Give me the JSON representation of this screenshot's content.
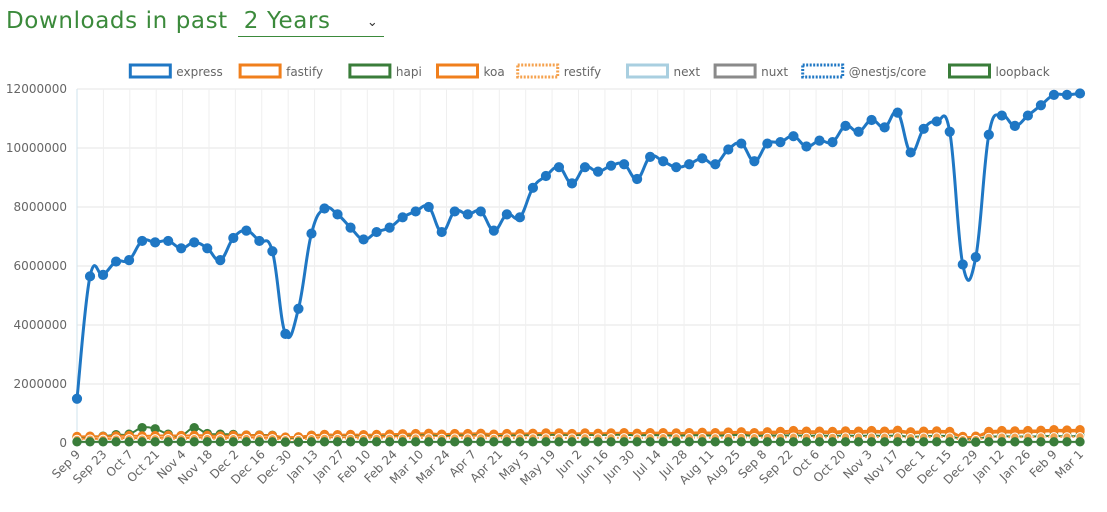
{
  "header": {
    "title": "Downloads in past",
    "range_value": "2 Years",
    "chevron_icon": "chevron-down-icon"
  },
  "chart_data": {
    "type": "line",
    "ylim": [
      0,
      12000000
    ],
    "y_ticks": [
      "0",
      "2000000",
      "4000000",
      "6000000",
      "8000000",
      "10000000",
      "12000000"
    ],
    "x_tick_labels": [
      "Sep 9",
      "Sep 23",
      "Oct 7",
      "Oct 21",
      "Nov 4",
      "Nov 18",
      "Dec 2",
      "Dec 16",
      "Dec 30",
      "Jan 13",
      "Jan 27",
      "Feb 10",
      "Feb 24",
      "Mar 10",
      "Mar 24",
      "Apr 7",
      "Apr 21",
      "May 5",
      "May 19",
      "Jun 2",
      "Jun 16",
      "Jun 30",
      "Jul 14",
      "Jul 28",
      "Aug 11",
      "Aug 25",
      "Sep 8",
      "Sep 22",
      "Oct 6",
      "Oct 20",
      "Nov 3",
      "Nov 17",
      "Dec 1",
      "Dec 15",
      "Dec 29",
      "Jan 12",
      "Jan 26",
      "Feb 9",
      "Mar 1"
    ],
    "grid": true,
    "legend_position": "top",
    "series": [
      {
        "name": "express",
        "color": "#1f77c4",
        "border": "solid",
        "values": [
          1500000,
          5650000,
          5700000,
          6150000,
          6200000,
          6850000,
          6800000,
          6850000,
          6600000,
          6800000,
          6600000,
          6200000,
          6950000,
          7200000,
          6850000,
          6500000,
          3700000,
          4550000,
          7100000,
          7950000,
          7750000,
          7300000,
          6900000,
          7150000,
          7300000,
          7650000,
          7850000,
          8000000,
          7150000,
          7850000,
          7750000,
          7850000,
          7200000,
          7750000,
          7650000,
          8650000,
          9050000,
          9350000,
          8800000,
          9350000,
          9200000,
          9400000,
          9450000,
          8950000,
          9700000,
          9550000,
          9350000,
          9450000,
          9650000,
          9450000,
          9950000,
          10150000,
          9550000,
          10150000,
          10200000,
          10400000,
          10050000,
          10250000,
          10200000,
          10750000,
          10550000,
          10950000,
          10700000,
          11200000,
          9850000,
          10650000,
          10900000,
          10550000,
          6050000,
          6300000,
          10450000,
          11100000,
          10750000,
          11100000,
          11450000,
          11800000,
          11800000,
          11850000
        ]
      },
      {
        "name": "fastify",
        "color": "#f07f1c",
        "border": "solid",
        "values": [
          150000,
          150000,
          140000,
          160000,
          170000,
          160000,
          170000,
          180000,
          170000,
          180000,
          190000,
          170000,
          180000,
          190000,
          180000,
          170000,
          150000,
          160000,
          180000,
          200000,
          190000,
          200000,
          190000,
          210000,
          220000,
          230000,
          240000,
          250000,
          230000,
          240000,
          240000,
          250000,
          230000,
          240000,
          250000,
          260000,
          270000,
          270000,
          260000,
          270000,
          270000,
          280000,
          280000,
          270000,
          290000,
          290000,
          280000,
          290000,
          300000,
          290000,
          310000,
          320000,
          300000,
          320000,
          330000,
          340000,
          330000,
          340000,
          330000,
          350000,
          340000,
          360000,
          350000,
          370000,
          330000,
          350000,
          360000,
          340000,
          200000,
          210000,
          330000,
          360000,
          350000,
          360000,
          380000,
          400000,
          390000,
          400000
        ]
      },
      {
        "name": "hapi",
        "color": "#3a7d3a",
        "border": "solid",
        "values": [
          200000,
          220000,
          230000,
          280000,
          300000,
          520000,
          480000,
          300000,
          250000,
          520000,
          320000,
          300000,
          290000,
          270000,
          270000,
          260000,
          180000,
          200000,
          260000,
          280000,
          270000,
          270000,
          260000,
          270000,
          280000,
          290000,
          290000,
          300000,
          260000,
          280000,
          290000,
          310000,
          270000,
          280000,
          270000,
          280000,
          280000,
          290000,
          270000,
          280000,
          270000,
          280000,
          280000,
          260000,
          270000,
          260000,
          250000,
          260000,
          260000,
          250000,
          260000,
          270000,
          240000,
          250000,
          250000,
          260000,
          240000,
          250000,
          240000,
          250000,
          240000,
          250000,
          240000,
          250000,
          210000,
          230000,
          240000,
          230000,
          130000,
          140000,
          210000,
          230000,
          220000,
          220000,
          230000,
          240000,
          230000,
          240000
        ]
      },
      {
        "name": "koa",
        "color": "#f07f1c",
        "border": "solid",
        "values": [
          220000,
          230000,
          220000,
          240000,
          250000,
          240000,
          250000,
          260000,
          250000,
          260000,
          260000,
          240000,
          260000,
          270000,
          260000,
          250000,
          200000,
          210000,
          260000,
          290000,
          280000,
          290000,
          280000,
          290000,
          300000,
          310000,
          320000,
          330000,
          300000,
          320000,
          320000,
          330000,
          300000,
          320000,
          320000,
          330000,
          340000,
          340000,
          320000,
          340000,
          330000,
          340000,
          350000,
          330000,
          350000,
          350000,
          340000,
          350000,
          360000,
          350000,
          370000,
          380000,
          350000,
          380000,
          390000,
          420000,
          400000,
          400000,
          390000,
          410000,
          400000,
          420000,
          400000,
          430000,
          380000,
          400000,
          410000,
          390000,
          220000,
          230000,
          390000,
          420000,
          410000,
          420000,
          430000,
          450000,
          440000,
          450000
        ]
      },
      {
        "name": "restify",
        "color": "#f5a24e",
        "border": "dotted",
        "values": [
          120000,
          130000,
          125000,
          135000,
          140000,
          135000,
          140000,
          145000,
          140000,
          145000,
          150000,
          140000,
          145000,
          150000,
          145000,
          140000,
          110000,
          120000,
          145000,
          155000,
          150000,
          155000,
          150000,
          155000,
          160000,
          160000,
          165000,
          170000,
          155000,
          165000,
          165000,
          170000,
          155000,
          165000,
          165000,
          170000,
          170000,
          175000,
          165000,
          175000,
          170000,
          175000,
          175000,
          165000,
          180000,
          180000,
          175000,
          180000,
          180000,
          175000,
          185000,
          190000,
          180000,
          190000,
          190000,
          195000,
          190000,
          195000,
          190000,
          200000,
          195000,
          200000,
          195000,
          205000,
          180000,
          195000,
          200000,
          195000,
          110000,
          115000,
          190000,
          200000,
          195000,
          200000,
          205000,
          210000,
          205000,
          210000
        ]
      },
      {
        "name": "next",
        "color": "#a9cfe0",
        "border": "solid",
        "values": []
      },
      {
        "name": "nuxt",
        "color": "#8a8a8a",
        "border": "solid",
        "values": []
      },
      {
        "name": "@nestjs/core",
        "color": "#1f77c4",
        "border": "dotted",
        "values": []
      },
      {
        "name": "loopback",
        "color": "#3a7d3a",
        "border": "solid",
        "values": [
          40000,
          40000,
          40000,
          40000,
          40000,
          40000,
          40000,
          40000,
          40000,
          40000,
          40000,
          40000,
          40000,
          40000,
          40000,
          40000,
          30000,
          30000,
          40000,
          40000,
          40000,
          40000,
          40000,
          40000,
          40000,
          40000,
          40000,
          40000,
          40000,
          40000,
          40000,
          40000,
          40000,
          40000,
          40000,
          40000,
          40000,
          40000,
          40000,
          40000,
          40000,
          40000,
          40000,
          40000,
          40000,
          40000,
          40000,
          40000,
          40000,
          40000,
          40000,
          40000,
          40000,
          40000,
          40000,
          40000,
          40000,
          40000,
          40000,
          40000,
          40000,
          40000,
          40000,
          40000,
          40000,
          40000,
          40000,
          40000,
          30000,
          30000,
          40000,
          40000,
          40000,
          40000,
          40000,
          40000,
          40000,
          40000
        ]
      }
    ]
  }
}
